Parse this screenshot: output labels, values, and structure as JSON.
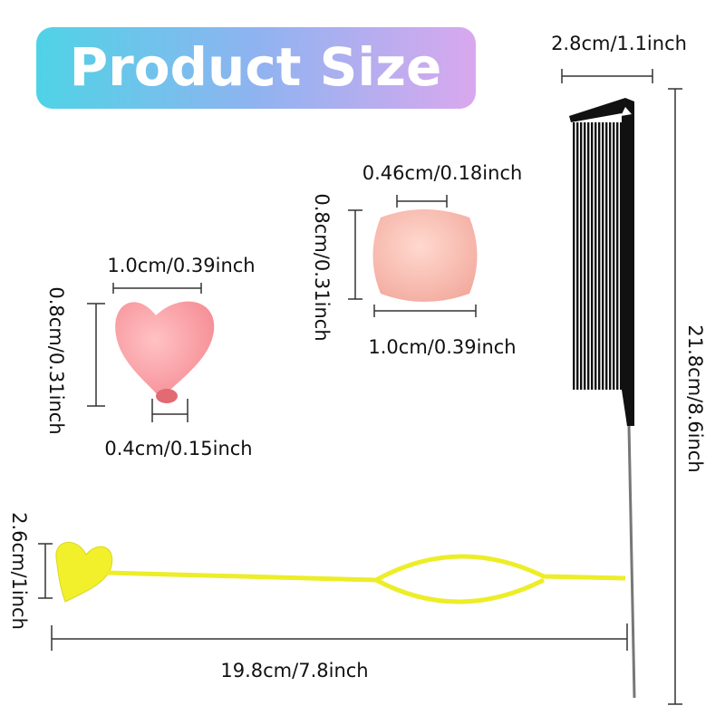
{
  "title": "Product Size",
  "comb": {
    "width": "2.8cm/1.1inch",
    "length": "21.8cm/8.6inch"
  },
  "heart_bead": {
    "width": "1.0cm/0.39inch",
    "height": "0.8cm/0.31inch",
    "hole": "0.4cm/0.15inch"
  },
  "round_bead": {
    "hole": "0.46cm/0.18inch",
    "height": "0.8cm/0.31inch",
    "width": "1.0cm/0.39inch"
  },
  "loop_tool": {
    "height": "2.6cm/1inch",
    "length": "19.8cm/7.8inch"
  }
}
